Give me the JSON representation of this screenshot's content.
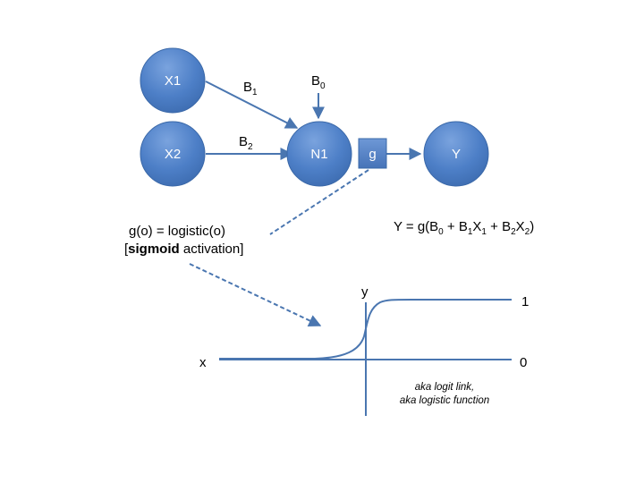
{
  "nodes": {
    "x1": "X1",
    "x2": "X2",
    "n1": "N1",
    "g": "g",
    "y": "Y"
  },
  "weights": {
    "b1": {
      "base": "B",
      "sub": "1"
    },
    "b2": {
      "base": "B",
      "sub": "2"
    },
    "b0": {
      "base": "B",
      "sub": "0"
    }
  },
  "activation": {
    "line1": "g(o) = logistic(o)",
    "open_bracket": "[",
    "bold_word": "sigmoid",
    "rest": " activation]"
  },
  "equation": {
    "prefix": "Y = g(B",
    "s0": "0",
    "p1": " + B",
    "s1": "1",
    "p2": "X",
    "s2": "1",
    "p3": " + B",
    "s3": "2",
    "p4": "X",
    "s4": "2",
    "suffix": ")"
  },
  "plot": {
    "x_label": "x",
    "y_label": "y",
    "one": "1",
    "zero": "0",
    "note1": "aka logit link,",
    "note2": "aka logistic function"
  },
  "colors": {
    "node_fill": "#4f80c6",
    "node_stroke": "#3a68a8",
    "line": "#4a76b0"
  }
}
